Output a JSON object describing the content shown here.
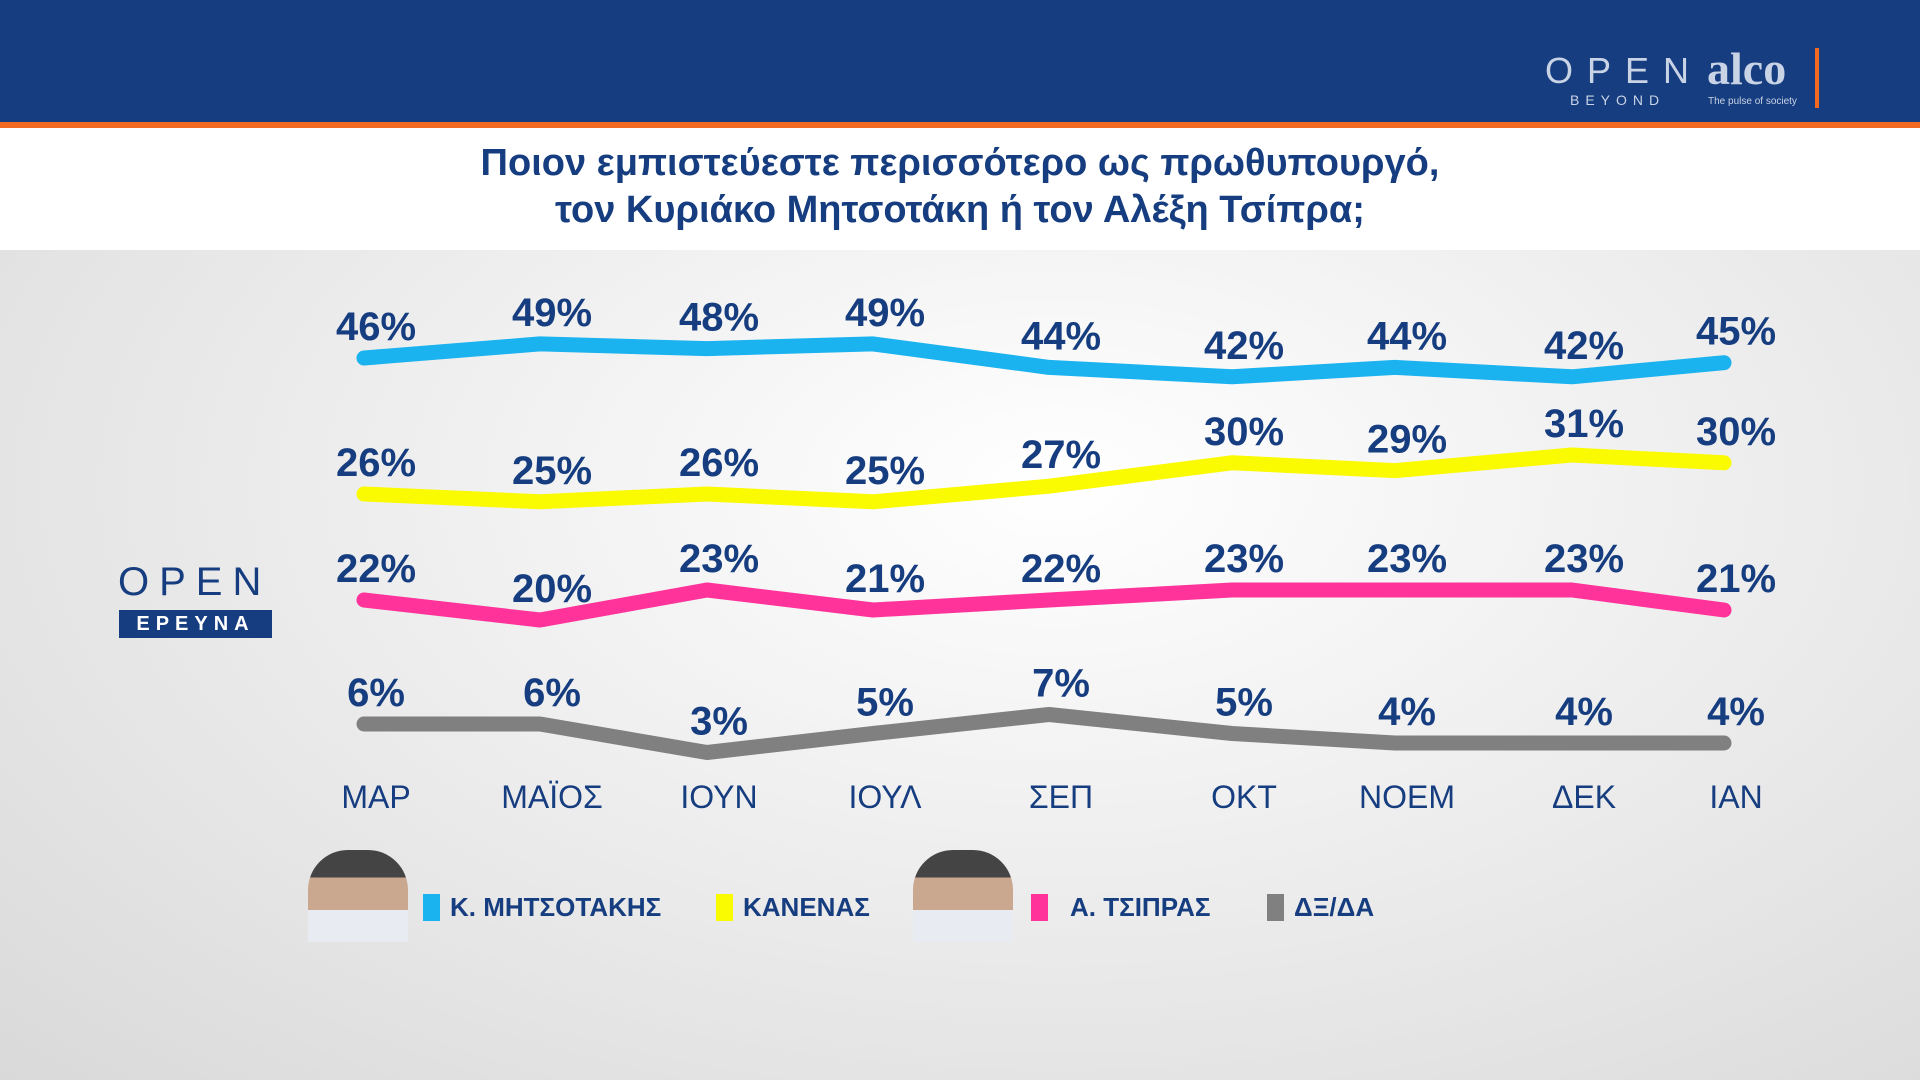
{
  "header": {
    "brand_open": "OPEN",
    "brand_beyond": "BEYOND",
    "brand_alco": "alco",
    "brand_alco_tagline": "The pulse of society"
  },
  "title_line1": "Ποιον εμπιστεύεστε περισσότερο ως πρωθυπουργό,",
  "title_line2": "τον Κυριάκο Μητσοτάκη ή τον Αλέξη Τσίπρα;",
  "side_logo": {
    "open": "OPEN",
    "ereuna": "ΕΡΕΥΝΑ"
  },
  "chart_data": {
    "type": "line",
    "categories": [
      "ΜΑΡ",
      "ΜΑΪΟΣ",
      "ΙΟΥΝ",
      "ΙΟΥΛ",
      "ΣΕΠ",
      "ΟΚΤ",
      "ΝΟΕΜ",
      "ΔΕΚ",
      "ΙΑΝ"
    ],
    "unit": "%",
    "grid": false,
    "legend_position": "bottom",
    "series": [
      {
        "name": "Κ. ΜΗΤΣΟΤΑΚΗΣ",
        "color": "#1ab2ef",
        "values": [
          46,
          49,
          48,
          49,
          44,
          42,
          44,
          42,
          45
        ]
      },
      {
        "name": "ΚΑΝΕΝΑΣ",
        "color": "#fafa00",
        "values": [
          26,
          25,
          26,
          25,
          27,
          30,
          29,
          31,
          30
        ]
      },
      {
        "name": "Α. ΤΣΙΠΡΑΣ",
        "color": "#ff3399",
        "values": [
          22,
          20,
          23,
          21,
          22,
          23,
          23,
          23,
          21
        ]
      },
      {
        "name": "ΔΞ/ΔΑ",
        "color": "#808080",
        "values": [
          6,
          6,
          3,
          5,
          7,
          5,
          4,
          4,
          4
        ]
      }
    ]
  }
}
